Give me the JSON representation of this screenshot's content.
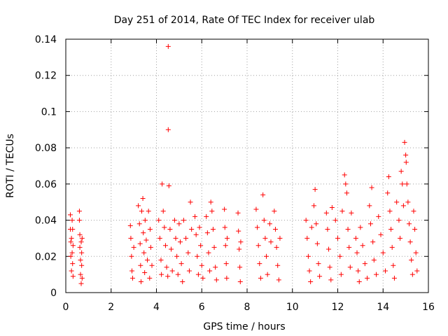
{
  "chart_data": {
    "type": "scatter",
    "title": "Day 251 of 2014, Rate Of TEC Index for receiver ulab",
    "xlabel": "GPS time / hours",
    "ylabel": "ROTI / TECUs",
    "xlim": [
      0,
      16
    ],
    "ylim": [
      0,
      0.14
    ],
    "xticks": [
      0,
      2,
      4,
      6,
      8,
      10,
      12,
      14,
      16
    ],
    "yticks": [
      0,
      0.02,
      0.04,
      0.06,
      0.08,
      0.1,
      0.12,
      0.14
    ],
    "xtick_labels": [
      "0",
      "2",
      "4",
      "6",
      "8",
      "10",
      "12",
      "14",
      "16"
    ],
    "ytick_labels": [
      "0",
      "0.02",
      "0.04",
      "0.06",
      "0.08",
      "0.1",
      "0.12",
      "0.14"
    ],
    "grid": true,
    "marker": "+",
    "marker_color": "#ff0000",
    "series": [
      {
        "name": "ROTI",
        "points": [
          [
            0.2,
            0.043
          ],
          [
            0.2,
            0.035
          ],
          [
            0.22,
            0.028
          ],
          [
            0.22,
            0.02
          ],
          [
            0.25,
            0.012
          ],
          [
            0.25,
            0.03
          ],
          [
            0.28,
            0.04
          ],
          [
            0.28,
            0.022
          ],
          [
            0.3,
            0.016
          ],
          [
            0.3,
            0.035
          ],
          [
            0.32,
            0.026
          ],
          [
            0.32,
            0.009
          ],
          [
            0.6,
            0.045
          ],
          [
            0.6,
            0.04
          ],
          [
            0.62,
            0.032
          ],
          [
            0.62,
            0.025
          ],
          [
            0.65,
            0.018
          ],
          [
            0.65,
            0.01
          ],
          [
            0.68,
            0.005
          ],
          [
            0.68,
            0.028
          ],
          [
            0.7,
            0.015
          ],
          [
            0.7,
            0.022
          ],
          [
            0.72,
            0.008
          ],
          [
            0.72,
            0.03
          ],
          [
            2.85,
            0.037
          ],
          [
            2.87,
            0.03
          ],
          [
            2.9,
            0.02
          ],
          [
            2.92,
            0.012
          ],
          [
            2.95,
            0.008
          ],
          [
            3.0,
            0.025
          ],
          [
            3.2,
            0.048
          ],
          [
            3.25,
            0.038
          ],
          [
            3.28,
            0.027
          ],
          [
            3.3,
            0.015
          ],
          [
            3.32,
            0.006
          ],
          [
            3.35,
            0.045
          ],
          [
            3.4,
            0.052
          ],
          [
            3.42,
            0.033
          ],
          [
            3.45,
            0.022
          ],
          [
            3.48,
            0.011
          ],
          [
            3.5,
            0.04
          ],
          [
            3.55,
            0.029
          ],
          [
            3.6,
            0.018
          ],
          [
            3.65,
            0.045
          ],
          [
            3.7,
            0.008
          ],
          [
            3.72,
            0.035
          ],
          [
            3.75,
            0.025
          ],
          [
            3.8,
            0.015
          ],
          [
            4.1,
            0.04
          ],
          [
            4.15,
            0.03
          ],
          [
            4.2,
            0.018
          ],
          [
            4.22,
            0.01
          ],
          [
            4.25,
            0.06
          ],
          [
            4.3,
            0.045
          ],
          [
            4.35,
            0.036
          ],
          [
            4.4,
            0.026
          ],
          [
            4.45,
            0.014
          ],
          [
            4.5,
            0.009
          ],
          [
            4.52,
            0.136
          ],
          [
            4.52,
            0.09
          ],
          [
            4.55,
            0.059
          ],
          [
            4.6,
            0.035
          ],
          [
            4.65,
            0.024
          ],
          [
            4.7,
            0.012
          ],
          [
            4.8,
            0.04
          ],
          [
            4.85,
            0.03
          ],
          [
            4.9,
            0.02
          ],
          [
            4.95,
            0.01
          ],
          [
            5.0,
            0.038
          ],
          [
            5.05,
            0.028
          ],
          [
            5.1,
            0.016
          ],
          [
            5.15,
            0.006
          ],
          [
            5.2,
            0.04
          ],
          [
            5.3,
            0.03
          ],
          [
            5.4,
            0.022
          ],
          [
            5.45,
            0.012
          ],
          [
            5.5,
            0.05
          ],
          [
            5.55,
            0.035
          ],
          [
            5.7,
            0.042
          ],
          [
            5.75,
            0.032
          ],
          [
            5.8,
            0.02
          ],
          [
            5.85,
            0.01
          ],
          [
            5.9,
            0.036
          ],
          [
            5.95,
            0.026
          ],
          [
            6.0,
            0.015
          ],
          [
            6.05,
            0.008
          ],
          [
            6.2,
            0.042
          ],
          [
            6.25,
            0.033
          ],
          [
            6.3,
            0.022
          ],
          [
            6.35,
            0.012
          ],
          [
            6.4,
            0.05
          ],
          [
            6.45,
            0.045
          ],
          [
            6.5,
            0.035
          ],
          [
            6.55,
            0.025
          ],
          [
            6.6,
            0.014
          ],
          [
            6.65,
            0.007
          ],
          [
            7.0,
            0.046
          ],
          [
            7.02,
            0.036
          ],
          [
            7.05,
            0.026
          ],
          [
            7.08,
            0.016
          ],
          [
            7.1,
            0.008
          ],
          [
            7.12,
            0.03
          ],
          [
            7.6,
            0.044
          ],
          [
            7.62,
            0.034
          ],
          [
            7.65,
            0.024
          ],
          [
            7.68,
            0.014
          ],
          [
            7.7,
            0.006
          ],
          [
            7.72,
            0.028
          ],
          [
            8.4,
            0.046
          ],
          [
            8.45,
            0.036
          ],
          [
            8.5,
            0.026
          ],
          [
            8.55,
            0.016
          ],
          [
            8.6,
            0.008
          ],
          [
            8.7,
            0.054
          ],
          [
            8.75,
            0.04
          ],
          [
            8.8,
            0.03
          ],
          [
            8.85,
            0.02
          ],
          [
            8.9,
            0.01
          ],
          [
            9.0,
            0.038
          ],
          [
            9.05,
            0.028
          ],
          [
            9.2,
            0.045
          ],
          [
            9.25,
            0.035
          ],
          [
            9.3,
            0.025
          ],
          [
            9.35,
            0.015
          ],
          [
            9.4,
            0.007
          ],
          [
            9.45,
            0.03
          ],
          [
            10.6,
            0.04
          ],
          [
            10.65,
            0.03
          ],
          [
            10.7,
            0.02
          ],
          [
            10.75,
            0.012
          ],
          [
            10.8,
            0.006
          ],
          [
            10.85,
            0.036
          ],
          [
            10.95,
            0.048
          ],
          [
            11.0,
            0.057
          ],
          [
            11.05,
            0.038
          ],
          [
            11.1,
            0.027
          ],
          [
            11.15,
            0.016
          ],
          [
            11.2,
            0.009
          ],
          [
            11.5,
            0.044
          ],
          [
            11.55,
            0.035
          ],
          [
            11.6,
            0.024
          ],
          [
            11.65,
            0.014
          ],
          [
            11.7,
            0.007
          ],
          [
            11.75,
            0.047
          ],
          [
            11.9,
            0.04
          ],
          [
            12.0,
            0.03
          ],
          [
            12.1,
            0.02
          ],
          [
            12.15,
            0.01
          ],
          [
            12.2,
            0.045
          ],
          [
            12.3,
            0.065
          ],
          [
            12.35,
            0.06
          ],
          [
            12.4,
            0.055
          ],
          [
            12.45,
            0.035
          ],
          [
            12.5,
            0.025
          ],
          [
            12.55,
            0.014
          ],
          [
            12.6,
            0.044
          ],
          [
            12.8,
            0.03
          ],
          [
            12.85,
            0.022
          ],
          [
            12.9,
            0.012
          ],
          [
            12.95,
            0.006
          ],
          [
            13.0,
            0.036
          ],
          [
            13.1,
            0.026
          ],
          [
            13.2,
            0.016
          ],
          [
            13.3,
            0.008
          ],
          [
            13.4,
            0.048
          ],
          [
            13.45,
            0.038
          ],
          [
            13.5,
            0.058
          ],
          [
            13.55,
            0.028
          ],
          [
            13.6,
            0.018
          ],
          [
            13.7,
            0.01
          ],
          [
            13.8,
            0.042
          ],
          [
            13.9,
            0.032
          ],
          [
            14.0,
            0.022
          ],
          [
            14.1,
            0.012
          ],
          [
            14.2,
            0.055
          ],
          [
            14.25,
            0.064
          ],
          [
            14.3,
            0.045
          ],
          [
            14.35,
            0.035
          ],
          [
            14.4,
            0.025
          ],
          [
            14.45,
            0.015
          ],
          [
            14.5,
            0.008
          ],
          [
            14.6,
            0.05
          ],
          [
            14.7,
            0.04
          ],
          [
            14.75,
            0.03
          ],
          [
            14.8,
            0.067
          ],
          [
            14.85,
            0.06
          ],
          [
            14.9,
            0.048
          ],
          [
            14.95,
            0.083
          ],
          [
            15.0,
            0.076
          ],
          [
            15.02,
            0.072
          ],
          [
            15.05,
            0.06
          ],
          [
            15.1,
            0.05
          ],
          [
            15.15,
            0.038
          ],
          [
            15.2,
            0.028
          ],
          [
            15.25,
            0.018
          ],
          [
            15.3,
            0.01
          ],
          [
            15.35,
            0.045
          ],
          [
            15.4,
            0.035
          ],
          [
            15.45,
            0.022
          ],
          [
            15.5,
            0.012
          ]
        ]
      }
    ]
  }
}
